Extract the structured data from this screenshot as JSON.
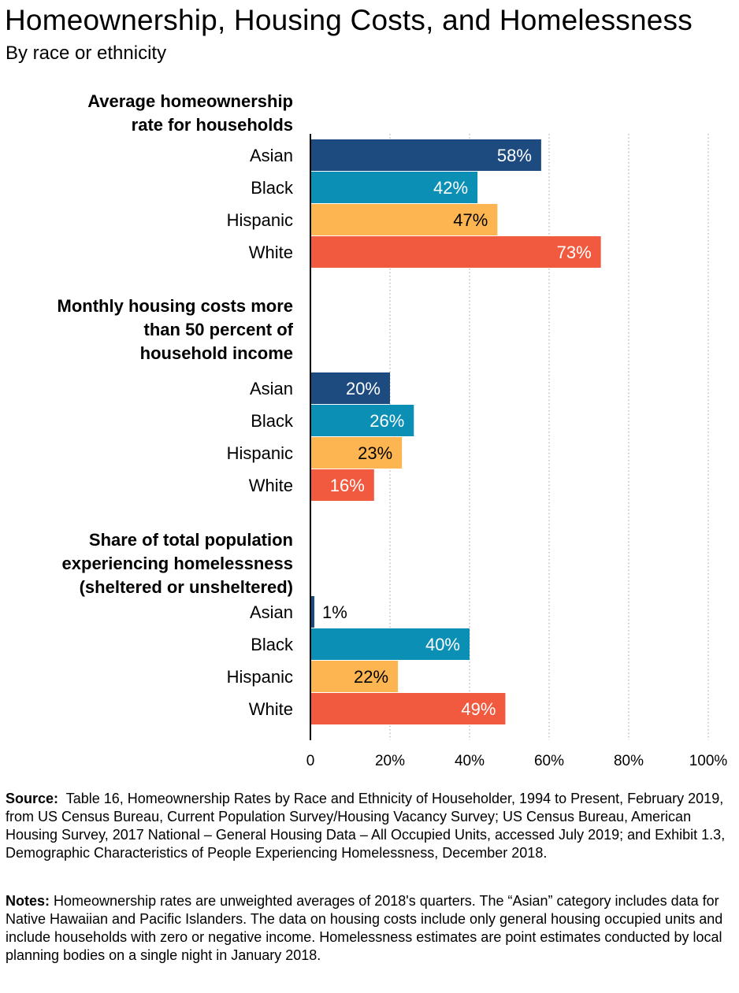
{
  "header": {
    "title": "Homeownership, Housing Costs, and Homelessness",
    "subtitle": "By race or ethnicity"
  },
  "chart_data": {
    "type": "bar",
    "orientation": "horizontal",
    "xlim": [
      0,
      100
    ],
    "x_ticks": [
      "0",
      "20%",
      "40%",
      "60%",
      "80%",
      "100%"
    ],
    "grid": "dotted vertical",
    "colors": {
      "Asian": "#1d4a7f",
      "Black": "#0c8fb5",
      "Hispanic": "#fcb551",
      "White": "#f15a3e"
    },
    "groups": [
      {
        "title": "Average homeownership rate for households",
        "title_lines": [
          "Average homeownership",
          "rate for households"
        ],
        "bars": [
          {
            "category": "Asian",
            "value": 58,
            "label": "58%"
          },
          {
            "category": "Black",
            "value": 42,
            "label": "42%"
          },
          {
            "category": "Hispanic",
            "value": 47,
            "label": "47%"
          },
          {
            "category": "White",
            "value": 73,
            "label": "73%"
          }
        ]
      },
      {
        "title": "Monthly housing costs more than 50 percent of household income",
        "title_lines": [
          "Monthly housing costs more",
          "than 50 percent of",
          "household income"
        ],
        "bars": [
          {
            "category": "Asian",
            "value": 20,
            "label": "20%"
          },
          {
            "category": "Black",
            "value": 26,
            "label": "26%"
          },
          {
            "category": "Hispanic",
            "value": 23,
            "label": "23%"
          },
          {
            "category": "White",
            "value": 16,
            "label": "16%"
          }
        ]
      },
      {
        "title": "Share of total population experiencing homelessness (sheltered or unsheltered)",
        "title_lines": [
          "Share of total population",
          "experiencing homelessness",
          "(sheltered or unsheltered)"
        ],
        "bars": [
          {
            "category": "Asian",
            "value": 1,
            "label": "1%"
          },
          {
            "category": "Black",
            "value": 40,
            "label": "40%"
          },
          {
            "category": "Hispanic",
            "value": 22,
            "label": "22%"
          },
          {
            "category": "White",
            "value": 49,
            "label": "49%"
          }
        ]
      }
    ]
  },
  "footer": {
    "source_label": "Source:",
    "source_text": "Table 16, Homeownership Rates by Race and Ethnicity of Householder, 1994 to Present, February 2019, from US Census Bureau, Current Population Survey/Housing Vacancy Survey; US Census Bureau, American Housing Survey, 2017 National – General Housing Data – All Occupied Units, accessed July 2019; and Exhibit 1.3, Demographic Characteristics of People Experiencing Homelessness, December 2018.",
    "notes_label": "Notes:",
    "notes_text": "Homeownership rates are unweighted averages of 2018's quarters. The “Asian” category includes data for Native Hawaiian and Pacific Islanders. The data on housing costs include only general housing occupied units and include households with zero or negative income. Homelessness estimates are point estimates conducted by local planning bodies on a single night in January 2018."
  }
}
